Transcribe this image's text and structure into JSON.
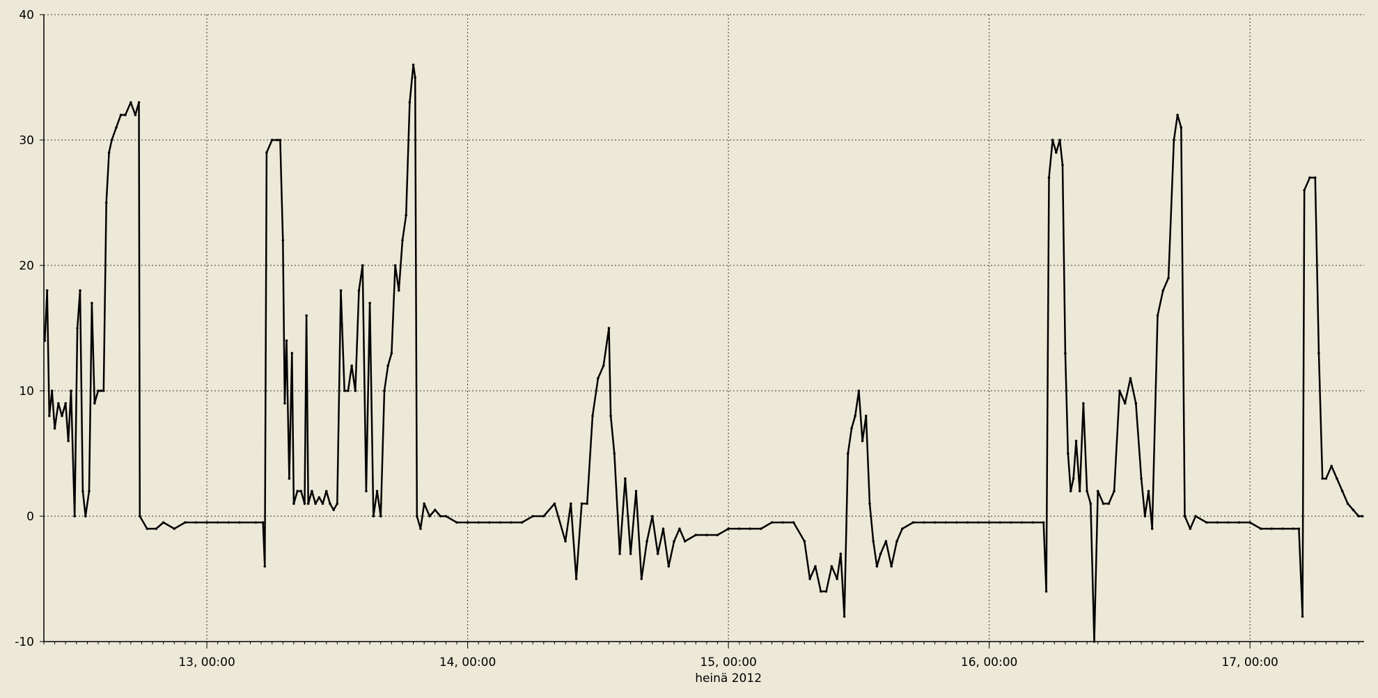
{
  "page": {
    "background": "#ece9d8"
  },
  "chart_data": {
    "type": "line",
    "title": "",
    "xlabel": "heinä 2012",
    "ylabel": "",
    "xlim": [
      "2012-07-12 09:00",
      "2012-07-17 10:30"
    ],
    "ylim": [
      -10,
      40
    ],
    "y_ticks": [
      -10,
      0,
      10,
      20,
      30,
      40
    ],
    "y_tick_labels": [
      "-10",
      "0",
      "10",
      "20",
      "30",
      "40"
    ],
    "x_ticks": [
      "2012-07-13 00:00",
      "2012-07-14 00:00",
      "2012-07-15 00:00",
      "2012-07-16 00:00",
      "2012-07-17 00:00"
    ],
    "x_tick_labels": [
      "13, 00:00",
      "14, 00:00",
      "15, 00:00",
      "16, 00:00",
      "17, 00:00"
    ],
    "grid": true,
    "grid_style": "dotted",
    "legend": "none",
    "colors": {
      "line": "#000000",
      "grid": "#333333",
      "background": "#ece9d8"
    },
    "series": [
      {
        "color": "#000000",
        "points": [
          [
            "2012-07-12 09:05",
            14
          ],
          [
            "2012-07-12 09:18",
            18
          ],
          [
            "2012-07-12 09:30",
            8
          ],
          [
            "2012-07-12 09:45",
            10
          ],
          [
            "2012-07-12 10:00",
            7
          ],
          [
            "2012-07-12 10:20",
            9
          ],
          [
            "2012-07-12 10:40",
            8
          ],
          [
            "2012-07-12 11:00",
            9
          ],
          [
            "2012-07-12 11:15",
            6
          ],
          [
            "2012-07-12 11:30",
            10
          ],
          [
            "2012-07-12 11:50",
            0
          ],
          [
            "2012-07-12 12:05",
            15
          ],
          [
            "2012-07-12 12:20",
            18
          ],
          [
            "2012-07-12 12:35",
            2
          ],
          [
            "2012-07-12 12:50",
            0
          ],
          [
            "2012-07-12 13:10",
            2
          ],
          [
            "2012-07-12 13:25",
            17
          ],
          [
            "2012-07-12 13:40",
            9
          ],
          [
            "2012-07-12 14:00",
            10
          ],
          [
            "2012-07-12 14:15",
            10
          ],
          [
            "2012-07-12 14:30",
            10
          ],
          [
            "2012-07-12 14:45",
            25
          ],
          [
            "2012-07-12 15:00",
            29
          ],
          [
            "2012-07-12 15:15",
            30
          ],
          [
            "2012-07-12 15:40",
            31
          ],
          [
            "2012-07-12 16:05",
            32
          ],
          [
            "2012-07-12 16:30",
            32
          ],
          [
            "2012-07-12 17:00",
            33
          ],
          [
            "2012-07-12 17:25",
            32
          ],
          [
            "2012-07-12 17:45",
            33
          ],
          [
            "2012-07-12 17:50",
            0
          ],
          [
            "2012-07-12 18:30",
            -1
          ],
          [
            "2012-07-12 19:20",
            -1
          ],
          [
            "2012-07-12 20:00",
            -0.5
          ],
          [
            "2012-07-12 21:00",
            -1
          ],
          [
            "2012-07-12 22:00",
            -0.5
          ],
          [
            "2012-07-12 23:00",
            -0.5
          ],
          [
            "2012-07-13 00:00",
            -0.5
          ],
          [
            "2012-07-13 01:00",
            -0.5
          ],
          [
            "2012-07-13 02:00",
            -0.5
          ],
          [
            "2012-07-13 03:00",
            -0.5
          ],
          [
            "2012-07-13 04:30",
            -0.5
          ],
          [
            "2012-07-13 05:10",
            -0.5
          ],
          [
            "2012-07-13 05:20",
            -4
          ],
          [
            "2012-07-13 05:30",
            29
          ],
          [
            "2012-07-13 06:00",
            30
          ],
          [
            "2012-07-13 06:30",
            30
          ],
          [
            "2012-07-13 06:45",
            30
          ],
          [
            "2012-07-13 07:00",
            22
          ],
          [
            "2012-07-13 07:10",
            9
          ],
          [
            "2012-07-13 07:20",
            14
          ],
          [
            "2012-07-13 07:35",
            3
          ],
          [
            "2012-07-13 07:50",
            13
          ],
          [
            "2012-07-13 08:00",
            1
          ],
          [
            "2012-07-13 08:20",
            2
          ],
          [
            "2012-07-13 08:40",
            2
          ],
          [
            "2012-07-13 09:00",
            1
          ],
          [
            "2012-07-13 09:10",
            16
          ],
          [
            "2012-07-13 09:20",
            1
          ],
          [
            "2012-07-13 09:40",
            2
          ],
          [
            "2012-07-13 10:00",
            1
          ],
          [
            "2012-07-13 10:20",
            1.5
          ],
          [
            "2012-07-13 10:40",
            1
          ],
          [
            "2012-07-13 11:00",
            2
          ],
          [
            "2012-07-13 11:20",
            1
          ],
          [
            "2012-07-13 11:40",
            0.5
          ],
          [
            "2012-07-13 12:00",
            1
          ],
          [
            "2012-07-13 12:20",
            18
          ],
          [
            "2012-07-13 12:40",
            10
          ],
          [
            "2012-07-13 13:00",
            10
          ],
          [
            "2012-07-13 13:20",
            12
          ],
          [
            "2012-07-13 13:40",
            10
          ],
          [
            "2012-07-13 14:00",
            18
          ],
          [
            "2012-07-13 14:20",
            20
          ],
          [
            "2012-07-13 14:40",
            2
          ],
          [
            "2012-07-13 15:00",
            17
          ],
          [
            "2012-07-13 15:20",
            0
          ],
          [
            "2012-07-13 15:40",
            2
          ],
          [
            "2012-07-13 16:00",
            0
          ],
          [
            "2012-07-13 16:20",
            10
          ],
          [
            "2012-07-13 16:40",
            12
          ],
          [
            "2012-07-13 17:00",
            13
          ],
          [
            "2012-07-13 17:20",
            20
          ],
          [
            "2012-07-13 17:40",
            18
          ],
          [
            "2012-07-13 18:00",
            22
          ],
          [
            "2012-07-13 18:20",
            24
          ],
          [
            "2012-07-13 18:40",
            33
          ],
          [
            "2012-07-13 19:00",
            36
          ],
          [
            "2012-07-13 19:10",
            35
          ],
          [
            "2012-07-13 19:20",
            0
          ],
          [
            "2012-07-13 19:40",
            -1
          ],
          [
            "2012-07-13 20:00",
            1
          ],
          [
            "2012-07-13 20:30",
            0
          ],
          [
            "2012-07-13 21:00",
            0.5
          ],
          [
            "2012-07-13 21:30",
            0
          ],
          [
            "2012-07-13 22:00",
            0
          ],
          [
            "2012-07-13 23:00",
            -0.5
          ],
          [
            "2012-07-14 00:00",
            -0.5
          ],
          [
            "2012-07-14 01:00",
            -0.5
          ],
          [
            "2012-07-14 02:00",
            -0.5
          ],
          [
            "2012-07-14 03:00",
            -0.5
          ],
          [
            "2012-07-14 04:00",
            -0.5
          ],
          [
            "2012-07-14 05:00",
            -0.5
          ],
          [
            "2012-07-14 06:00",
            0
          ],
          [
            "2012-07-14 07:00",
            0
          ],
          [
            "2012-07-14 08:00",
            1
          ],
          [
            "2012-07-14 09:00",
            -2
          ],
          [
            "2012-07-14 09:30",
            1
          ],
          [
            "2012-07-14 10:00",
            -5
          ],
          [
            "2012-07-14 10:30",
            1
          ],
          [
            "2012-07-14 11:00",
            1
          ],
          [
            "2012-07-14 11:30",
            8
          ],
          [
            "2012-07-14 12:00",
            11
          ],
          [
            "2012-07-14 12:30",
            12
          ],
          [
            "2012-07-14 13:00",
            15
          ],
          [
            "2012-07-14 13:10",
            8
          ],
          [
            "2012-07-14 13:30",
            5
          ],
          [
            "2012-07-14 14:00",
            -3
          ],
          [
            "2012-07-14 14:30",
            3
          ],
          [
            "2012-07-14 15:00",
            -3
          ],
          [
            "2012-07-14 15:30",
            2
          ],
          [
            "2012-07-14 16:00",
            -5
          ],
          [
            "2012-07-14 16:30",
            -2
          ],
          [
            "2012-07-14 17:00",
            0
          ],
          [
            "2012-07-14 17:30",
            -3
          ],
          [
            "2012-07-14 18:00",
            -1
          ],
          [
            "2012-07-14 18:30",
            -4
          ],
          [
            "2012-07-14 19:00",
            -2
          ],
          [
            "2012-07-14 19:30",
            -1
          ],
          [
            "2012-07-14 20:00",
            -2
          ],
          [
            "2012-07-14 21:00",
            -1.5
          ],
          [
            "2012-07-14 22:00",
            -1.5
          ],
          [
            "2012-07-14 23:00",
            -1.5
          ],
          [
            "2012-07-15 00:00",
            -1
          ],
          [
            "2012-07-15 01:00",
            -1
          ],
          [
            "2012-07-15 02:00",
            -1
          ],
          [
            "2012-07-15 03:00",
            -1
          ],
          [
            "2012-07-15 04:00",
            -0.5
          ],
          [
            "2012-07-15 05:00",
            -0.5
          ],
          [
            "2012-07-15 06:00",
            -0.5
          ],
          [
            "2012-07-15 07:00",
            -2
          ],
          [
            "2012-07-15 07:30",
            -5
          ],
          [
            "2012-07-15 08:00",
            -4
          ],
          [
            "2012-07-15 08:30",
            -6
          ],
          [
            "2012-07-15 09:00",
            -6
          ],
          [
            "2012-07-15 09:30",
            -4
          ],
          [
            "2012-07-15 10:00",
            -5
          ],
          [
            "2012-07-15 10:20",
            -3
          ],
          [
            "2012-07-15 10:40",
            -8
          ],
          [
            "2012-07-15 11:00",
            5
          ],
          [
            "2012-07-15 11:20",
            7
          ],
          [
            "2012-07-15 11:40",
            8
          ],
          [
            "2012-07-15 12:00",
            10
          ],
          [
            "2012-07-15 12:20",
            6
          ],
          [
            "2012-07-15 12:40",
            8
          ],
          [
            "2012-07-15 13:00",
            1
          ],
          [
            "2012-07-15 13:20",
            -2
          ],
          [
            "2012-07-15 13:40",
            -4
          ],
          [
            "2012-07-15 14:00",
            -3
          ],
          [
            "2012-07-15 14:30",
            -2
          ],
          [
            "2012-07-15 15:00",
            -4
          ],
          [
            "2012-07-15 15:30",
            -2
          ],
          [
            "2012-07-15 16:00",
            -1
          ],
          [
            "2012-07-15 17:00",
            -0.5
          ],
          [
            "2012-07-15 18:00",
            -0.5
          ],
          [
            "2012-07-15 19:00",
            -0.5
          ],
          [
            "2012-07-15 20:00",
            -0.5
          ],
          [
            "2012-07-15 21:00",
            -0.5
          ],
          [
            "2012-07-15 22:00",
            -0.5
          ],
          [
            "2012-07-15 23:00",
            -0.5
          ],
          [
            "2012-07-16 00:00",
            -0.5
          ],
          [
            "2012-07-16 01:00",
            -0.5
          ],
          [
            "2012-07-16 02:00",
            -0.5
          ],
          [
            "2012-07-16 03:00",
            -0.5
          ],
          [
            "2012-07-16 04:00",
            -0.5
          ],
          [
            "2012-07-16 05:00",
            -0.5
          ],
          [
            "2012-07-16 05:15",
            -6
          ],
          [
            "2012-07-16 05:30",
            27
          ],
          [
            "2012-07-16 05:50",
            30
          ],
          [
            "2012-07-16 06:10",
            29
          ],
          [
            "2012-07-16 06:30",
            30
          ],
          [
            "2012-07-16 06:45",
            28
          ],
          [
            "2012-07-16 07:00",
            13
          ],
          [
            "2012-07-16 07:15",
            5
          ],
          [
            "2012-07-16 07:30",
            2
          ],
          [
            "2012-07-16 07:45",
            3
          ],
          [
            "2012-07-16 08:00",
            6
          ],
          [
            "2012-07-16 08:20",
            2
          ],
          [
            "2012-07-16 08:40",
            9
          ],
          [
            "2012-07-16 09:00",
            2
          ],
          [
            "2012-07-16 09:20",
            1
          ],
          [
            "2012-07-16 09:40",
            -10
          ],
          [
            "2012-07-16 10:00",
            2
          ],
          [
            "2012-07-16 10:30",
            1
          ],
          [
            "2012-07-16 11:00",
            1
          ],
          [
            "2012-07-16 11:30",
            2
          ],
          [
            "2012-07-16 12:00",
            10
          ],
          [
            "2012-07-16 12:30",
            9
          ],
          [
            "2012-07-16 13:00",
            11
          ],
          [
            "2012-07-16 13:30",
            9
          ],
          [
            "2012-07-16 14:00",
            3
          ],
          [
            "2012-07-16 14:20",
            0
          ],
          [
            "2012-07-16 14:40",
            2
          ],
          [
            "2012-07-16 15:00",
            -1
          ],
          [
            "2012-07-16 15:30",
            16
          ],
          [
            "2012-07-16 16:00",
            18
          ],
          [
            "2012-07-16 16:30",
            19
          ],
          [
            "2012-07-16 17:00",
            30
          ],
          [
            "2012-07-16 17:20",
            32
          ],
          [
            "2012-07-16 17:40",
            31
          ],
          [
            "2012-07-16 18:00",
            0
          ],
          [
            "2012-07-16 18:30",
            -1
          ],
          [
            "2012-07-16 19:00",
            0
          ],
          [
            "2012-07-16 20:00",
            -0.5
          ],
          [
            "2012-07-16 21:00",
            -0.5
          ],
          [
            "2012-07-16 22:00",
            -0.5
          ],
          [
            "2012-07-16 23:00",
            -0.5
          ],
          [
            "2012-07-17 00:00",
            -0.5
          ],
          [
            "2012-07-17 01:00",
            -1
          ],
          [
            "2012-07-17 02:00",
            -1
          ],
          [
            "2012-07-17 03:00",
            -1
          ],
          [
            "2012-07-17 04:00",
            -1
          ],
          [
            "2012-07-17 04:30",
            -1
          ],
          [
            "2012-07-17 04:50",
            -8
          ],
          [
            "2012-07-17 05:00",
            26
          ],
          [
            "2012-07-17 05:30",
            27
          ],
          [
            "2012-07-17 06:00",
            27
          ],
          [
            "2012-07-17 06:20",
            13
          ],
          [
            "2012-07-17 06:40",
            3
          ],
          [
            "2012-07-17 07:00",
            3
          ],
          [
            "2012-07-17 07:30",
            4
          ],
          [
            "2012-07-17 08:00",
            3
          ],
          [
            "2012-07-17 08:30",
            2
          ],
          [
            "2012-07-17 09:00",
            1
          ],
          [
            "2012-07-17 09:30",
            0.5
          ],
          [
            "2012-07-17 10:00",
            0
          ],
          [
            "2012-07-17 10:20",
            0
          ]
        ]
      }
    ]
  }
}
